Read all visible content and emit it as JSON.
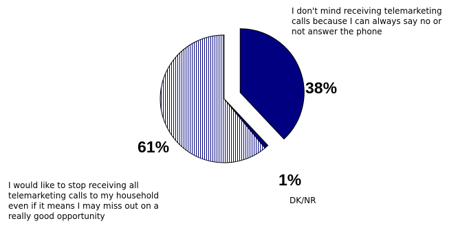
{
  "chart_data": {
    "type": "pie",
    "title": "",
    "slices": [
      {
        "label": "I don't mind receiving telemarketing calls because I can always say no or not answer the phone",
        "label_lines": [
          "I don't mind receiving telemarketing",
          "calls because I can always say no or",
          "not answer the phone"
        ],
        "value": 38,
        "value_label": "38%",
        "color": "#000080",
        "fill": "solid",
        "exploded": true
      },
      {
        "label": "DK/NR",
        "label_lines": [
          "DK/NR"
        ],
        "value": 1,
        "value_label": "1%",
        "color": "#000080",
        "fill": "solid",
        "exploded": false
      },
      {
        "label": "I would like to stop receiving all telemarketing calls to my household even if it means I may miss out on a really good opportunity",
        "label_lines": [
          "I would like to stop receiving all",
          "telemarketing calls to my household",
          "even if it means I may miss out on a",
          "really good opportunity"
        ],
        "value": 61,
        "value_label": "61%",
        "color": "#000080",
        "fill": "vertical-stripes",
        "exploded": false
      }
    ]
  }
}
